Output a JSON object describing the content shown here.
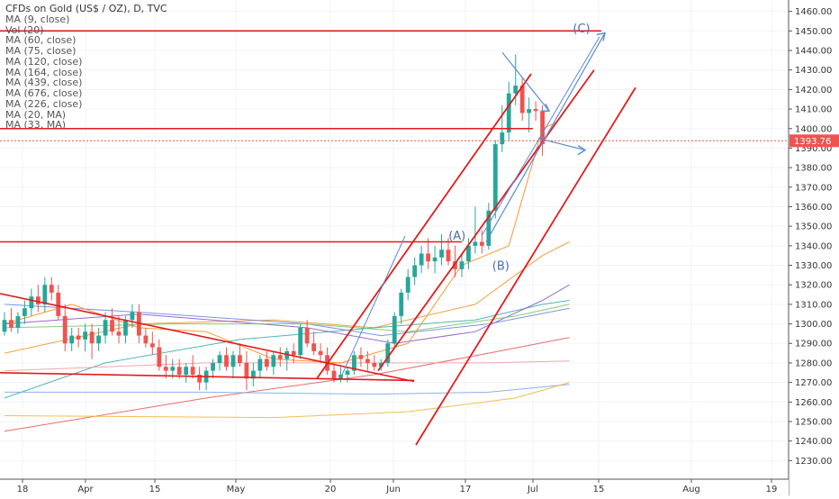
{
  "chart_data": {
    "type": "candlestick",
    "title": "CFDs on Gold (US$ / OZ), D, TVC",
    "studies": [
      "Vol (20)",
      "MA (9, close)",
      "MA (60, close)",
      "MA (75, close)",
      "MA (120, close)",
      "MA (164, close)",
      "MA (439, close)",
      "MA (676, close)",
      "MA (226, close)",
      "MA (20, MA)",
      "MA (33, MA)"
    ],
    "x_tick_labels": [
      "18",
      "Apr",
      "15",
      "May",
      "20",
      "Jun",
      "17",
      "Jul",
      "15",
      "Aug",
      "19"
    ],
    "y_ticks": [
      1230,
      1240,
      1250,
      1260,
      1270,
      1280,
      1290,
      1300,
      1310,
      1320,
      1330,
      1340,
      1350,
      1360,
      1370,
      1380,
      1390,
      1400,
      1410,
      1420,
      1430,
      1440,
      1450,
      1460
    ],
    "y_tick_labels": [
      "1230.00",
      "1240.00",
      "1250.00",
      "1260.00",
      "1270.00",
      "1280.00",
      "1290.00",
      "1300.00",
      "1310.00",
      "1320.00",
      "1330.00",
      "1340.00",
      "1350.00",
      "1360.00",
      "1370.00",
      "1380.00",
      "1390.00",
      "1400.00",
      "1410.00",
      "1420.00",
      "1430.00",
      "1440.00",
      "1450.00",
      "1460.00"
    ],
    "ylim": [
      1226,
      1464
    ],
    "last_price": {
      "value": 1393.76,
      "label": "1393.76"
    },
    "bars": [
      {
        "o": 1296,
        "h": 1306,
        "l": 1294,
        "c": 1302
      },
      {
        "o": 1302,
        "h": 1308,
        "l": 1296,
        "c": 1298
      },
      {
        "o": 1298,
        "h": 1306,
        "l": 1295,
        "c": 1304
      },
      {
        "o": 1304,
        "h": 1312,
        "l": 1300,
        "c": 1308
      },
      {
        "o": 1308,
        "h": 1318,
        "l": 1304,
        "c": 1314
      },
      {
        "o": 1314,
        "h": 1320,
        "l": 1306,
        "c": 1310
      },
      {
        "o": 1310,
        "h": 1324,
        "l": 1306,
        "c": 1320
      },
      {
        "o": 1320,
        "h": 1324,
        "l": 1312,
        "c": 1316
      },
      {
        "o": 1316,
        "h": 1320,
        "l": 1302,
        "c": 1304
      },
      {
        "o": 1304,
        "h": 1310,
        "l": 1286,
        "c": 1290
      },
      {
        "o": 1290,
        "h": 1298,
        "l": 1286,
        "c": 1294
      },
      {
        "o": 1294,
        "h": 1298,
        "l": 1288,
        "c": 1292
      },
      {
        "o": 1292,
        "h": 1300,
        "l": 1286,
        "c": 1296
      },
      {
        "o": 1296,
        "h": 1300,
        "l": 1282,
        "c": 1290
      },
      {
        "o": 1290,
        "h": 1298,
        "l": 1286,
        "c": 1294
      },
      {
        "o": 1294,
        "h": 1306,
        "l": 1290,
        "c": 1302
      },
      {
        "o": 1302,
        "h": 1308,
        "l": 1294,
        "c": 1296
      },
      {
        "o": 1296,
        "h": 1304,
        "l": 1290,
        "c": 1294
      },
      {
        "o": 1294,
        "h": 1304,
        "l": 1290,
        "c": 1302
      },
      {
        "o": 1302,
        "h": 1310,
        "l": 1298,
        "c": 1306
      },
      {
        "o": 1306,
        "h": 1310,
        "l": 1290,
        "c": 1294
      },
      {
        "o": 1294,
        "h": 1298,
        "l": 1288,
        "c": 1290
      },
      {
        "o": 1290,
        "h": 1296,
        "l": 1284,
        "c": 1288
      },
      {
        "o": 1288,
        "h": 1292,
        "l": 1276,
        "c": 1278
      },
      {
        "o": 1278,
        "h": 1284,
        "l": 1272,
        "c": 1276
      },
      {
        "o": 1276,
        "h": 1282,
        "l": 1272,
        "c": 1278
      },
      {
        "o": 1278,
        "h": 1282,
        "l": 1272,
        "c": 1274
      },
      {
        "o": 1274,
        "h": 1280,
        "l": 1270,
        "c": 1278
      },
      {
        "o": 1278,
        "h": 1284,
        "l": 1272,
        "c": 1274
      },
      {
        "o": 1274,
        "h": 1278,
        "l": 1266,
        "c": 1270
      },
      {
        "o": 1270,
        "h": 1278,
        "l": 1266,
        "c": 1276
      },
      {
        "o": 1276,
        "h": 1282,
        "l": 1272,
        "c": 1280
      },
      {
        "o": 1280,
        "h": 1286,
        "l": 1276,
        "c": 1284
      },
      {
        "o": 1284,
        "h": 1288,
        "l": 1276,
        "c": 1278
      },
      {
        "o": 1278,
        "h": 1286,
        "l": 1272,
        "c": 1284
      },
      {
        "o": 1284,
        "h": 1290,
        "l": 1278,
        "c": 1280
      },
      {
        "o": 1280,
        "h": 1286,
        "l": 1266,
        "c": 1272
      },
      {
        "o": 1272,
        "h": 1280,
        "l": 1268,
        "c": 1276
      },
      {
        "o": 1276,
        "h": 1284,
        "l": 1272,
        "c": 1282
      },
      {
        "o": 1282,
        "h": 1286,
        "l": 1276,
        "c": 1278
      },
      {
        "o": 1278,
        "h": 1286,
        "l": 1274,
        "c": 1284
      },
      {
        "o": 1284,
        "h": 1288,
        "l": 1278,
        "c": 1282
      },
      {
        "o": 1282,
        "h": 1288,
        "l": 1276,
        "c": 1286
      },
      {
        "o": 1286,
        "h": 1290,
        "l": 1280,
        "c": 1284
      },
      {
        "o": 1284,
        "h": 1300,
        "l": 1282,
        "c": 1298
      },
      {
        "o": 1298,
        "h": 1302,
        "l": 1288,
        "c": 1290
      },
      {
        "o": 1290,
        "h": 1296,
        "l": 1284,
        "c": 1286
      },
      {
        "o": 1286,
        "h": 1290,
        "l": 1280,
        "c": 1284
      },
      {
        "o": 1284,
        "h": 1288,
        "l": 1274,
        "c": 1276
      },
      {
        "o": 1276,
        "h": 1280,
        "l": 1270,
        "c": 1272
      },
      {
        "o": 1272,
        "h": 1278,
        "l": 1270,
        "c": 1274
      },
      {
        "o": 1274,
        "h": 1278,
        "l": 1270,
        "c": 1276
      },
      {
        "o": 1276,
        "h": 1286,
        "l": 1274,
        "c": 1284
      },
      {
        "o": 1284,
        "h": 1288,
        "l": 1278,
        "c": 1282
      },
      {
        "o": 1282,
        "h": 1286,
        "l": 1276,
        "c": 1280
      },
      {
        "o": 1280,
        "h": 1284,
        "l": 1276,
        "c": 1278
      },
      {
        "o": 1278,
        "h": 1282,
        "l": 1276,
        "c": 1280
      },
      {
        "o": 1280,
        "h": 1292,
        "l": 1278,
        "c": 1290
      },
      {
        "o": 1290,
        "h": 1306,
        "l": 1288,
        "c": 1304
      },
      {
        "o": 1304,
        "h": 1318,
        "l": 1300,
        "c": 1316
      },
      {
        "o": 1316,
        "h": 1328,
        "l": 1312,
        "c": 1324
      },
      {
        "o": 1324,
        "h": 1334,
        "l": 1320,
        "c": 1330
      },
      {
        "o": 1330,
        "h": 1340,
        "l": 1326,
        "c": 1336
      },
      {
        "o": 1336,
        "h": 1344,
        "l": 1328,
        "c": 1332
      },
      {
        "o": 1332,
        "h": 1340,
        "l": 1326,
        "c": 1334
      },
      {
        "o": 1334,
        "h": 1346,
        "l": 1330,
        "c": 1338
      },
      {
        "o": 1338,
        "h": 1344,
        "l": 1330,
        "c": 1332
      },
      {
        "o": 1332,
        "h": 1340,
        "l": 1324,
        "c": 1328
      },
      {
        "o": 1328,
        "h": 1336,
        "l": 1324,
        "c": 1332
      },
      {
        "o": 1332,
        "h": 1344,
        "l": 1328,
        "c": 1340
      },
      {
        "o": 1340,
        "h": 1360,
        "l": 1336,
        "c": 1342
      },
      {
        "o": 1342,
        "h": 1348,
        "l": 1336,
        "c": 1340
      },
      {
        "o": 1340,
        "h": 1362,
        "l": 1338,
        "c": 1358
      },
      {
        "o": 1358,
        "h": 1394,
        "l": 1354,
        "c": 1392
      },
      {
        "o": 1392,
        "h": 1412,
        "l": 1388,
        "c": 1398
      },
      {
        "o": 1398,
        "h": 1424,
        "l": 1394,
        "c": 1418
      },
      {
        "o": 1418,
        "h": 1438,
        "l": 1412,
        "c": 1422
      },
      {
        "o": 1422,
        "h": 1426,
        "l": 1404,
        "c": 1408
      },
      {
        "o": 1408,
        "h": 1416,
        "l": 1398,
        "c": 1410
      },
      {
        "o": 1410,
        "h": 1414,
        "l": 1404,
        "c": 1409
      },
      {
        "o": 1409,
        "h": 1412,
        "l": 1386,
        "c": 1392
      }
    ],
    "annotations": {
      "wave_labels": [
        {
          "text": "(A)",
          "bar": 67.5,
          "price": 1345.5
        },
        {
          "text": "(B)",
          "bar": 74,
          "price": 1330
        },
        {
          "text": "(C)",
          "bar": 86,
          "price": 1451.5
        }
      ],
      "horizontal_levels": [
        1450,
        1342,
        1400,
        1271
      ],
      "trendlines": "descending triangle support/resistance, ascending channel, forecast arrows"
    }
  }
}
